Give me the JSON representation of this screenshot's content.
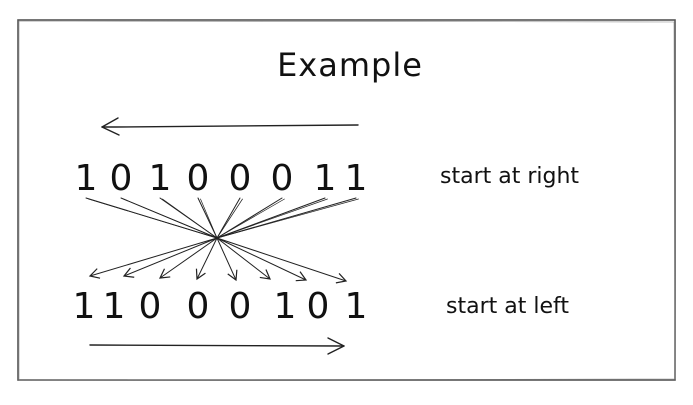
{
  "title": "Example",
  "top_row": {
    "bits": [
      "1",
      "0",
      "1",
      "0",
      "0",
      "0",
      "1",
      "1"
    ],
    "label": "start at right"
  },
  "bottom_row": {
    "bits": [
      "1",
      "1",
      "0",
      "0",
      "0",
      "1",
      "0",
      "1"
    ],
    "label": "start at left"
  },
  "colors": {
    "ink": "#222222",
    "frame": "#555555",
    "background": "#ffffff"
  }
}
